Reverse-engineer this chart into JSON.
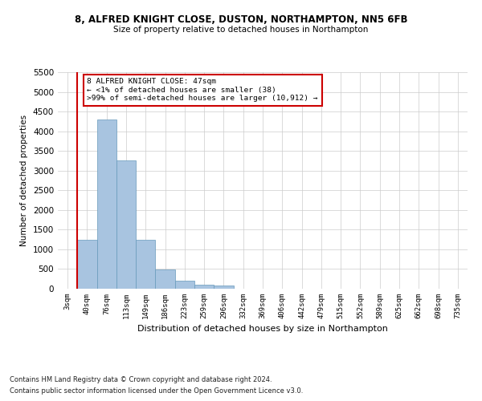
{
  "title1": "8, ALFRED KNIGHT CLOSE, DUSTON, NORTHAMPTON, NN5 6FB",
  "title2": "Size of property relative to detached houses in Northampton",
  "xlabel": "Distribution of detached houses by size in Northampton",
  "ylabel": "Number of detached properties",
  "footer1": "Contains HM Land Registry data © Crown copyright and database right 2024.",
  "footer2": "Contains public sector information licensed under the Open Government Licence v3.0.",
  "annotation_line1": "8 ALFRED KNIGHT CLOSE: 47sqm",
  "annotation_line2": "← <1% of detached houses are smaller (38)",
  "annotation_line3": ">99% of semi-detached houses are larger (10,912) →",
  "bar_color": "#a8c4e0",
  "bar_edge_color": "#6699bb",
  "vline_color": "#cc0000",
  "annotation_box_edge": "#cc0000",
  "categories": [
    "3sqm",
    "40sqm",
    "76sqm",
    "113sqm",
    "149sqm",
    "186sqm",
    "223sqm",
    "259sqm",
    "296sqm",
    "332sqm",
    "369sqm",
    "406sqm",
    "442sqm",
    "479sqm",
    "515sqm",
    "552sqm",
    "589sqm",
    "625sqm",
    "662sqm",
    "698sqm",
    "735sqm"
  ],
  "values": [
    0,
    1250,
    4300,
    3250,
    1250,
    480,
    200,
    100,
    75,
    0,
    0,
    0,
    0,
    0,
    0,
    0,
    0,
    0,
    0,
    0,
    0
  ],
  "ylim": [
    0,
    5500
  ],
  "yticks": [
    0,
    500,
    1000,
    1500,
    2000,
    2500,
    3000,
    3500,
    4000,
    4500,
    5000,
    5500
  ],
  "bg_color": "#ffffff",
  "grid_color": "#cccccc"
}
